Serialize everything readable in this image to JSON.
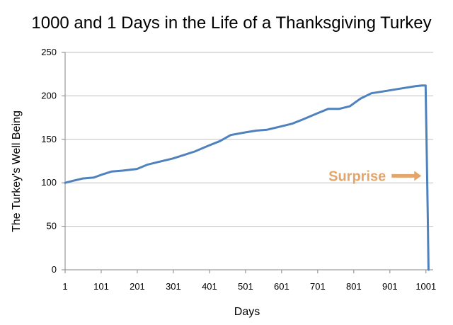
{
  "chart_data": {
    "type": "line",
    "title": "1000 and 1 Days in the Life of a Thanksgiving Turkey",
    "xlabel": "Days",
    "ylabel": "The Turkey's Well Being",
    "xlim": [
      1,
      1021
    ],
    "ylim": [
      0,
      250
    ],
    "x_ticks": [
      1,
      101,
      201,
      301,
      401,
      501,
      601,
      701,
      801,
      901,
      1001
    ],
    "y_ticks": [
      0,
      50,
      100,
      150,
      200,
      250
    ],
    "grid": true,
    "legend": "none",
    "colors": {
      "line": "#4f81bd",
      "annotation": "#e4a56b",
      "grid": "#bfbfbf",
      "axis": "#868686"
    },
    "annotation": {
      "text": "Surprise",
      "x": 1000,
      "y": 108
    },
    "series": [
      {
        "points": [
          [
            1,
            100
          ],
          [
            20,
            102
          ],
          [
            50,
            105
          ],
          [
            80,
            106
          ],
          [
            100,
            109
          ],
          [
            130,
            113
          ],
          [
            160,
            114
          ],
          [
            200,
            116
          ],
          [
            230,
            121
          ],
          [
            260,
            124
          ],
          [
            300,
            128
          ],
          [
            330,
            132
          ],
          [
            360,
            136
          ],
          [
            400,
            143
          ],
          [
            430,
            148
          ],
          [
            460,
            155
          ],
          [
            500,
            158
          ],
          [
            530,
            160
          ],
          [
            560,
            161
          ],
          [
            600,
            165
          ],
          [
            630,
            168
          ],
          [
            660,
            173
          ],
          [
            700,
            180
          ],
          [
            730,
            185
          ],
          [
            760,
            185
          ],
          [
            790,
            188
          ],
          [
            820,
            197
          ],
          [
            850,
            203
          ],
          [
            880,
            205
          ],
          [
            910,
            207
          ],
          [
            940,
            209
          ],
          [
            970,
            211
          ],
          [
            990,
            212
          ],
          [
            1000,
            212
          ],
          [
            1003,
            140
          ],
          [
            1006,
            60
          ],
          [
            1008,
            0
          ]
        ]
      }
    ]
  }
}
